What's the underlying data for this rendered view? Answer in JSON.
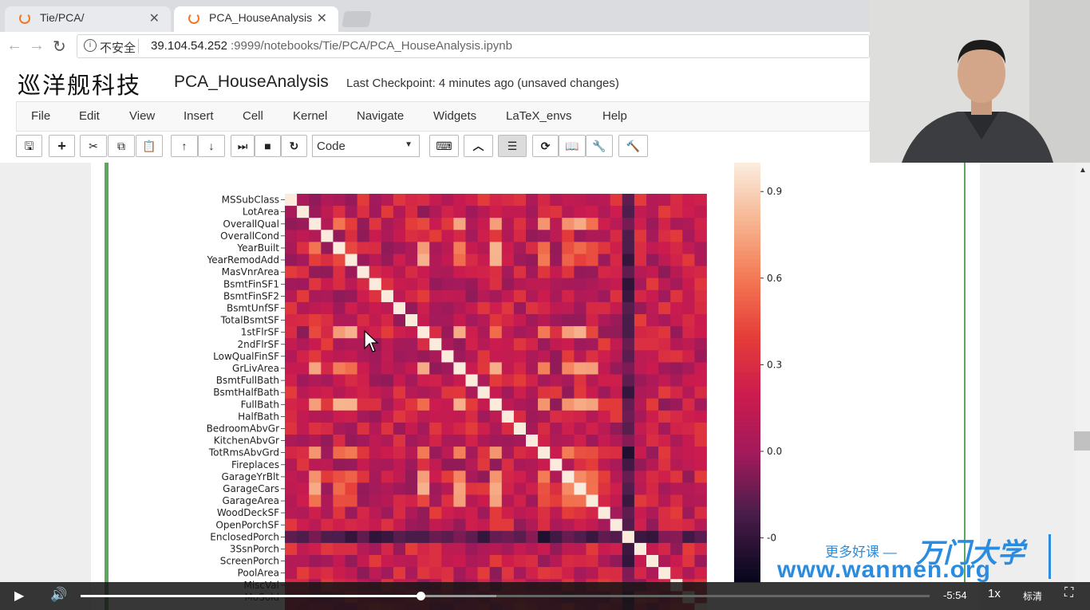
{
  "browser": {
    "tabs": [
      {
        "title": "Tie/PCA/",
        "active": false
      },
      {
        "title": "PCA_HouseAnalysis",
        "active": true
      }
    ],
    "security_label": "不安全",
    "url_host": "39.104.54.252",
    "url_rest": ":9999/notebooks/Tie/PCA/PCA_HouseAnalysis.ipynb"
  },
  "jupyter": {
    "logo_text": "巡洋舰科技",
    "notebook_title": "PCA_HouseAnalysis",
    "checkpoint": "Last Checkpoint: 4 minutes ago (unsaved changes)",
    "menu": [
      "File",
      "Edit",
      "View",
      "Insert",
      "Cell",
      "Kernel",
      "Navigate",
      "Widgets",
      "LaTeX_envs",
      "Help"
    ],
    "cell_type": "Code"
  },
  "chart_data": {
    "type": "heatmap",
    "title": "",
    "rows": [
      "MSSubClass",
      "LotArea",
      "OverallQual",
      "OverallCond",
      "YearBuilt",
      "YearRemodAdd",
      "MasVnrArea",
      "BsmtFinSF1",
      "BsmtFinSF2",
      "BsmtUnfSF",
      "TotalBsmtSF",
      "1stFlrSF",
      "2ndFlrSF",
      "LowQualFinSF",
      "GrLivArea",
      "BsmtFullBath",
      "BsmtHalfBath",
      "FullBath",
      "HalfBath",
      "BedroomAbvGr",
      "KitchenAbvGr",
      "TotRmsAbvGrd",
      "Fireplaces",
      "GarageYrBlt",
      "GarageCars",
      "GarageArea",
      "WoodDeckSF",
      "OpenPorchSF",
      "EnclosedPorch",
      "3SsnPorch",
      "ScreenPorch",
      "PoolArea",
      "MiscVal",
      "MoSold"
    ],
    "colorbar_ticks": [
      "0.9",
      "0.6",
      "0.3",
      "0.0",
      "-0"
    ],
    "colorbar_range": [
      -0.45,
      1.0
    ],
    "colormap": "rocket"
  },
  "video": {
    "time_remaining": "-5:54",
    "speed": "1x",
    "quality": "标清",
    "progress": 0.4
  },
  "watermark": {
    "slogan": "更多好课 —",
    "brand": "万门大学",
    "url": "www.wanmen.org"
  }
}
